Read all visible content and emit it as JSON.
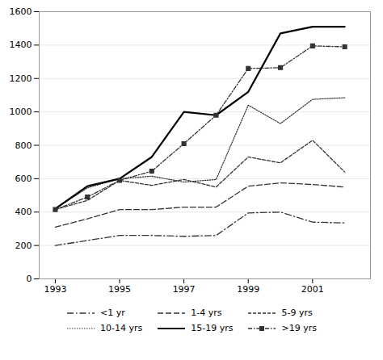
{
  "chart_data": {
    "type": "line",
    "x": [
      1993,
      1994,
      1995,
      1996,
      1997,
      1998,
      1999,
      2000,
      2001,
      2002
    ],
    "series": [
      {
        "name": "<1 yr",
        "color": "#333333",
        "line_style": "longdashdot",
        "values": [
          200,
          230,
          260,
          260,
          255,
          260,
          395,
          400,
          340,
          335
        ]
      },
      {
        "name": "1-4 yrs",
        "color": "#333333",
        "line_style": "longdash",
        "values": [
          310,
          360,
          415,
          415,
          430,
          430,
          555,
          575,
          565,
          550
        ]
      },
      {
        "name": "5-9 yrs",
        "color": "#333333",
        "line_style": "dash",
        "values": [
          415,
          470,
          590,
          560,
          595,
          550,
          730,
          695,
          830,
          640
        ]
      },
      {
        "name": "10-14 yrs",
        "color": "#333333",
        "line_style": "dot",
        "values": [
          420,
          545,
          600,
          615,
          580,
          595,
          1040,
          930,
          1075,
          1085
        ]
      },
      {
        "name": "15-19 yrs",
        "color": "#000000",
        "line_style": "solid",
        "values": [
          420,
          555,
          600,
          730,
          1000,
          980,
          1120,
          1470,
          1510,
          1510
        ]
      },
      {
        "name": ">19 yrs",
        "color": "#333333",
        "line_style": "dashdot",
        "marker": "square",
        "values": [
          415,
          490,
          590,
          645,
          810,
          980,
          1260,
          1265,
          1395,
          1390
        ]
      }
    ],
    "xlim": [
      1992.5,
      2002.8
    ],
    "xticks": [
      1993,
      1995,
      1997,
      1999,
      2001
    ],
    "ylim": [
      0,
      1600
    ],
    "yticks": [
      0,
      200,
      400,
      600,
      800,
      1000,
      1200,
      1400,
      1600
    ],
    "grid": "y",
    "legend": "bottom"
  }
}
